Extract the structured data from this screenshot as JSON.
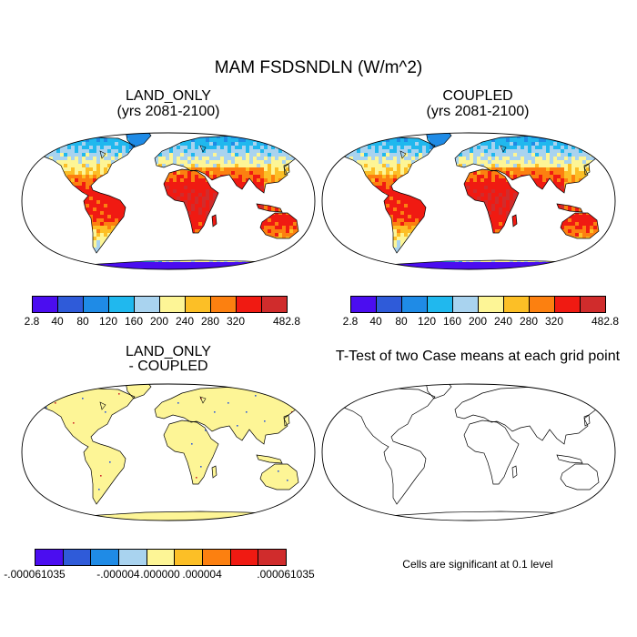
{
  "title": "MAM FSDSNDLN (W/m^2)",
  "panels": {
    "land_only": {
      "title_line1": "LAND_ONLY",
      "title_line2": "(yrs 2081-2100)"
    },
    "coupled": {
      "title_line1": "COUPLED",
      "title_line2": "(yrs 2081-2100)"
    },
    "difference": {
      "title_line1": "LAND_ONLY",
      "title_line2": "- COUPLED"
    },
    "ttest": {
      "title": "T-Test of two Case means at each grid point",
      "note": "Cells are significant at 0.1 level"
    }
  },
  "colorbar_main": {
    "colors": [
      "#4b0df0",
      "#2f5bd9",
      "#1f8be6",
      "#20b8ee",
      "#a9d3ef",
      "#fdf596",
      "#fcbf26",
      "#fc8010",
      "#f01a12",
      "#d02c2c"
    ],
    "labels": [
      "2.8",
      "40",
      "80",
      "120",
      "160",
      "200",
      "240",
      "280",
      "320",
      "482.8"
    ]
  },
  "colorbar_diff": {
    "colors": [
      "#4b0df0",
      "#2f5bd9",
      "#1f8be6",
      "#a9d3ef",
      "#fdf596",
      "#fcbf26",
      "#fc8010",
      "#f01a12",
      "#d02c2c"
    ],
    "labels": [
      "-.000061035",
      "-.000004",
      ".000000",
      ".000004",
      ".000061035"
    ]
  },
  "map_fill": {
    "difference": "#fdf596",
    "ocean": "#ffffff"
  }
}
